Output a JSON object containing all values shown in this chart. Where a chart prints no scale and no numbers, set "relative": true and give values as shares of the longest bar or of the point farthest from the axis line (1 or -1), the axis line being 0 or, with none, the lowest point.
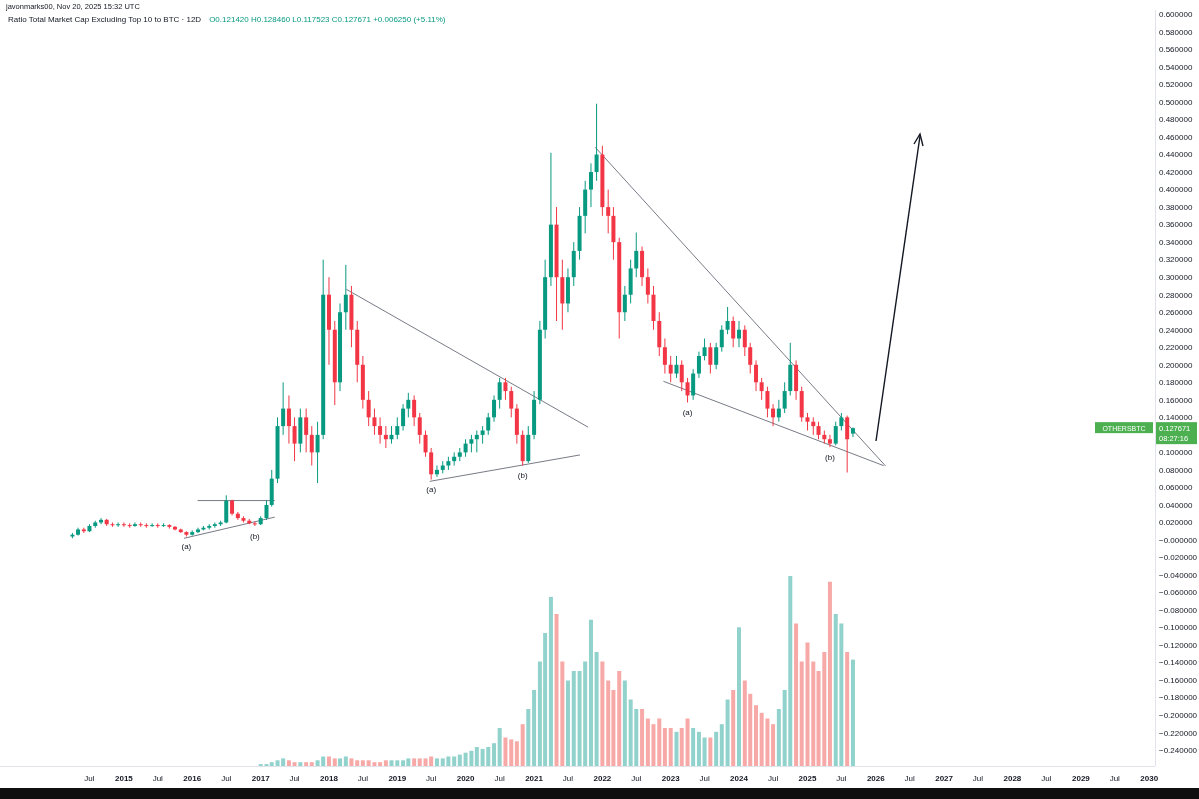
{
  "chart_data": [
    {
      "type": "candlestick",
      "title": "Ratio Total Market Cap Excluding Top 10 to BTC · 12D",
      "subtitle": "javonmarks00, Nov 20, 2025 15:32 UTC",
      "annotations": [
        "O0.121420 H0.128460 L0.117523 C0.127671 +0.006250 (+5.11%)",
        "OTHERSBTC",
        "0.127671",
        "08:27:16",
        {
          "text": "(a)",
          "x": "2015-12",
          "y": 0.004
        },
        {
          "text": "(b)",
          "x": "2016-12",
          "y": 0.016
        },
        {
          "text": "(a)",
          "x": "2019-07",
          "y": 0.069
        },
        {
          "text": "(b)",
          "x": "2020-11",
          "y": 0.085
        },
        {
          "text": "(a)",
          "x": "2023-04",
          "y": 0.157
        },
        {
          "text": "(b)",
          "x": "2025-05",
          "y": 0.106
        }
      ],
      "xlim": [
        "2013-03-10",
        "2030-02-01"
      ],
      "ylim": [
        -0.258,
        0.605
      ],
      "xticks": [
        {
          "value": "2014-07",
          "label": "Jul"
        },
        {
          "value": "2015",
          "label": "2015"
        },
        {
          "value": "2015-07",
          "label": "Jul"
        },
        {
          "value": "2016",
          "label": "2016"
        },
        {
          "value": "2016-07",
          "label": "Jul"
        },
        {
          "value": "2017",
          "label": "2017"
        },
        {
          "value": "2017-07",
          "label": "Jul"
        },
        {
          "value": "2018",
          "label": "2018"
        },
        {
          "value": "2018-07",
          "label": "Jul"
        },
        {
          "value": "2019",
          "label": "2019"
        },
        {
          "value": "2019-07",
          "label": "Jul"
        },
        {
          "value": "2020",
          "label": "2020"
        },
        {
          "value": "2020-07",
          "label": "Jul"
        },
        {
          "value": "2021",
          "label": "2021"
        },
        {
          "value": "2021-07",
          "label": "Jul"
        },
        {
          "value": "2022",
          "label": "2022"
        },
        {
          "value": "2022-07",
          "label": "Jul"
        },
        {
          "value": "2023",
          "label": "2023"
        },
        {
          "value": "2023-07",
          "label": "Jul"
        },
        {
          "value": "2024",
          "label": "2024"
        },
        {
          "value": "2024-07",
          "label": "Jul"
        },
        {
          "value": "2025",
          "label": "2025"
        },
        {
          "value": "2025-07",
          "label": "Jul"
        },
        {
          "value": "2026",
          "label": "2026"
        },
        {
          "value": "2026-07",
          "label": "Jul"
        },
        {
          "value": "2027",
          "label": "2027"
        },
        {
          "value": "2027-07",
          "label": "Jul"
        },
        {
          "value": "2028",
          "label": "2028"
        },
        {
          "value": "2028-07",
          "label": "Jul"
        },
        {
          "value": "2029",
          "label": "2029"
        },
        {
          "value": "2029-07",
          "label": "Jul"
        },
        {
          "value": "2030",
          "label": "2030"
        }
      ],
      "yticks": [
        {
          "value": 0.6,
          "label": "0.600000"
        },
        {
          "value": 0.58,
          "label": "0.580000"
        },
        {
          "value": 0.56,
          "label": "0.560000"
        },
        {
          "value": 0.54,
          "label": "0.540000"
        },
        {
          "value": 0.52,
          "label": "0.520000"
        },
        {
          "value": 0.5,
          "label": "0.500000"
        },
        {
          "value": 0.48,
          "label": "0.480000"
        },
        {
          "value": 0.46,
          "label": "0.460000"
        },
        {
          "value": 0.44,
          "label": "0.440000"
        },
        {
          "value": 0.42,
          "label": "0.420000"
        },
        {
          "value": 0.4,
          "label": "0.400000"
        },
        {
          "value": 0.38,
          "label": "0.380000"
        },
        {
          "value": 0.36,
          "label": "0.360000"
        },
        {
          "value": 0.34,
          "label": "0.340000"
        },
        {
          "value": 0.32,
          "label": "0.320000"
        },
        {
          "value": 0.3,
          "label": "0.300000"
        },
        {
          "value": 0.28,
          "label": "0.280000"
        },
        {
          "value": 0.26,
          "label": "0.260000"
        },
        {
          "value": 0.24,
          "label": "0.240000"
        },
        {
          "value": 0.22,
          "label": "0.220000"
        },
        {
          "value": 0.2,
          "label": "0.200000"
        },
        {
          "value": 0.18,
          "label": "0.180000"
        },
        {
          "value": 0.16,
          "label": "0.160000"
        },
        {
          "value": 0.14,
          "label": "0.140000"
        },
        {
          "value": 0.1,
          "label": "0.100000"
        },
        {
          "value": 0.08,
          "label": "0.080000"
        },
        {
          "value": 0.06,
          "label": "0.060000"
        },
        {
          "value": 0.04,
          "label": "0.040000"
        },
        {
          "value": 0.02,
          "label": "0.020000"
        },
        {
          "value": 0,
          "label": "−0.000000"
        },
        {
          "value": -0.02,
          "label": "−0.020000"
        },
        {
          "value": -0.04,
          "label": "−0.040000"
        },
        {
          "value": -0.06,
          "label": "−0.060000"
        },
        {
          "value": -0.08,
          "label": "−0.080000"
        },
        {
          "value": -0.1,
          "label": "−0.100000"
        },
        {
          "value": -0.12,
          "label": "−0.120000"
        },
        {
          "value": -0.14,
          "label": "−0.140000"
        },
        {
          "value": -0.16,
          "label": "−0.160000"
        },
        {
          "value": -0.18,
          "label": "−0.180000"
        },
        {
          "value": -0.2,
          "label": "−0.200000"
        },
        {
          "value": -0.22,
          "label": "−0.220000"
        },
        {
          "value": -0.24,
          "label": "−0.240000"
        }
      ],
      "colors": [
        "#089981",
        "#089981",
        "#f23645",
        "#089981",
        "#089981",
        "#089981",
        "#f23645",
        "#f23645",
        "#089981",
        "#f23645",
        "#f23645",
        "#089981",
        "#f23645",
        "#f23645",
        "#089981",
        "#f23645",
        "#089981",
        "#f23645",
        "#f23645",
        "#f23645",
        "#f23645",
        "#089981",
        "#089981",
        "#089981",
        "#089981",
        "#089981",
        "#089981",
        "#089981",
        "#f23645",
        "#f23645",
        "#f23645",
        "#f23645",
        "#f23645",
        "#089981",
        "#089981",
        "#089981",
        "#089981",
        "#089981",
        "#f23645",
        "#f23645",
        "#089981",
        "#f23645",
        "#f23645",
        "#089981",
        "#089981",
        "#f23645",
        "#f23645",
        "#089981",
        "#089981",
        "#f23645",
        "#f23645",
        "#f23645",
        "#f23645",
        "#f23645",
        "#f23645",
        "#f23645",
        "#089981",
        "#089981",
        "#089981",
        "#089981",
        "#f23645",
        "#f23645",
        "#f23645",
        "#f23645",
        "#089981",
        "#089981",
        "#089981",
        "#089981",
        "#089981",
        "#089981",
        "#089981",
        "#089981",
        "#089981",
        "#089981",
        "#089981",
        "#089981",
        "#f23645",
        "#f23645",
        "#f23645",
        "#f23645",
        "#089981",
        "#089981",
        "#089981",
        "#089981",
        "#089981",
        "#f23645",
        "#f23645",
        "#089981",
        "#089981",
        "#089981",
        "#089981",
        "#089981",
        "#089981",
        "#f23645",
        "#f23645",
        "#f23645",
        "#f23645",
        "#089981",
        "#089981",
        "#089981",
        "#f23645",
        "#f23645",
        "#f23645",
        "#f23645",
        "#f23645",
        "#f23645",
        "#089981",
        "#f23645",
        "#f23645",
        "#089981",
        "#089981",
        "#089981",
        "#f23645",
        "#089981",
        "#089981",
        "#089981",
        "#f23645",
        "#089981",
        "#f23645",
        "#f23645",
        "#f23645",
        "#f23645",
        "#f23645",
        "#f23645",
        "#089981",
        "#089981",
        "#089981",
        "#f23645",
        "#f23645",
        "#f23645",
        "#f23645",
        "#f23645",
        "#f23645",
        "#f23645",
        "#089981",
        "#089981",
        "#f23645",
        "#089981"
      ],
      "x": [
        "2014-04",
        "2014-05",
        "2014-06",
        "2014-07",
        "2014-08",
        "2014-09",
        "2014-10",
        "2014-11",
        "2014-12",
        "2015-01",
        "2015-02",
        "2015-03",
        "2015-04",
        "2015-05",
        "2015-06",
        "2015-07",
        "2015-08",
        "2015-09",
        "2015-10",
        "2015-11",
        "2015-12",
        "2016-01",
        "2016-02",
        "2016-03",
        "2016-04",
        "2016-05",
        "2016-06",
        "2016-07",
        "2016-08",
        "2016-09",
        "2016-10",
        "2016-11",
        "2016-12",
        "2017-01",
        "2017-02",
        "2017-03",
        "2017-04",
        "2017-05",
        "2017-06",
        "2017-07",
        "2017-08",
        "2017-09",
        "2017-10",
        "2017-11",
        "2017-12",
        "2018-01",
        "2018-02",
        "2018-03",
        "2018-04",
        "2018-05",
        "2018-06",
        "2018-07",
        "2018-08",
        "2018-09",
        "2018-10",
        "2018-11",
        "2018-12",
        "2019-01",
        "2019-02",
        "2019-03",
        "2019-04",
        "2019-05",
        "2019-06",
        "2019-07",
        "2019-08",
        "2019-09",
        "2019-10",
        "2019-11",
        "2019-12",
        "2020-01",
        "2020-02",
        "2020-03",
        "2020-04",
        "2020-05",
        "2020-06",
        "2020-07",
        "2020-08",
        "2020-09",
        "2020-10",
        "2020-11",
        "2020-12",
        "2021-01",
        "2021-02",
        "2021-03",
        "2021-04",
        "2021-05",
        "2021-06",
        "2021-07",
        "2021-08",
        "2021-09",
        "2021-10",
        "2021-11",
        "2021-12",
        "2022-01",
        "2022-02",
        "2022-03",
        "2022-04",
        "2022-05",
        "2022-06",
        "2022-07",
        "2022-08",
        "2022-09",
        "2022-10",
        "2022-11",
        "2022-12",
        "2023-01",
        "2023-02",
        "2023-03",
        "2023-04",
        "2023-05",
        "2023-06",
        "2023-07",
        "2023-08",
        "2023-09",
        "2023-10",
        "2023-11",
        "2023-12",
        "2024-01",
        "2024-02",
        "2024-03",
        "2024-04",
        "2024-05",
        "2024-06",
        "2024-07",
        "2024-08",
        "2024-09",
        "2024-10",
        "2024-11",
        "2024-12",
        "2025-01",
        "2025-02",
        "2025-03",
        "2025-04",
        "2025-05",
        "2025-06",
        "2025-07",
        "2025-08",
        "2025-09"
      ],
      "ohlc": [
        [
          0.004,
          0.008,
          0.002,
          0.006
        ],
        [
          0.006,
          0.014,
          0.005,
          0.012
        ],
        [
          0.012,
          0.014,
          0.008,
          0.01
        ],
        [
          0.01,
          0.018,
          0.009,
          0.016
        ],
        [
          0.016,
          0.022,
          0.014,
          0.02
        ],
        [
          0.02,
          0.025,
          0.018,
          0.023
        ],
        [
          0.023,
          0.024,
          0.016,
          0.018
        ],
        [
          0.018,
          0.02,
          0.015,
          0.017
        ],
        [
          0.017,
          0.02,
          0.015,
          0.018
        ],
        [
          0.018,
          0.02,
          0.015,
          0.017
        ],
        [
          0.017,
          0.019,
          0.014,
          0.016
        ],
        [
          0.016,
          0.02,
          0.015,
          0.018
        ],
        [
          0.018,
          0.02,
          0.015,
          0.017
        ],
        [
          0.017,
          0.019,
          0.014,
          0.016
        ],
        [
          0.016,
          0.019,
          0.015,
          0.017
        ],
        [
          0.017,
          0.019,
          0.014,
          0.016
        ],
        [
          0.016,
          0.019,
          0.015,
          0.017
        ],
        [
          0.017,
          0.018,
          0.013,
          0.015
        ],
        [
          0.015,
          0.016,
          0.011,
          0.012
        ],
        [
          0.012,
          0.013,
          0.008,
          0.009
        ],
        [
          0.009,
          0.01,
          0.004,
          0.006
        ],
        [
          0.006,
          0.011,
          0.005,
          0.009
        ],
        [
          0.009,
          0.014,
          0.008,
          0.012
        ],
        [
          0.012,
          0.016,
          0.011,
          0.014
        ],
        [
          0.014,
          0.018,
          0.012,
          0.016
        ],
        [
          0.016,
          0.02,
          0.014,
          0.018
        ],
        [
          0.018,
          0.022,
          0.016,
          0.02
        ],
        [
          0.02,
          0.051,
          0.019,
          0.045
        ],
        [
          0.045,
          0.046,
          0.028,
          0.03
        ],
        [
          0.03,
          0.032,
          0.023,
          0.025
        ],
        [
          0.025,
          0.027,
          0.02,
          0.022
        ],
        [
          0.022,
          0.024,
          0.018,
          0.019
        ],
        [
          0.019,
          0.021,
          0.016,
          0.018
        ],
        [
          0.018,
          0.027,
          0.017,
          0.025
        ],
        [
          0.025,
          0.045,
          0.023,
          0.04
        ],
        [
          0.04,
          0.08,
          0.038,
          0.07
        ],
        [
          0.07,
          0.14,
          0.065,
          0.13
        ],
        [
          0.13,
          0.18,
          0.12,
          0.15
        ],
        [
          0.15,
          0.165,
          0.11,
          0.13
        ],
        [
          0.13,
          0.14,
          0.09,
          0.11
        ],
        [
          0.11,
          0.15,
          0.1,
          0.14
        ],
        [
          0.14,
          0.15,
          0.1,
          0.12
        ],
        [
          0.12,
          0.13,
          0.085,
          0.1
        ],
        [
          0.1,
          0.135,
          0.065,
          0.12
        ],
        [
          0.12,
          0.32,
          0.115,
          0.28
        ],
        [
          0.28,
          0.3,
          0.2,
          0.24
        ],
        [
          0.24,
          0.25,
          0.154,
          0.18
        ],
        [
          0.18,
          0.27,
          0.17,
          0.26
        ],
        [
          0.26,
          0.314,
          0.24,
          0.28
        ],
        [
          0.28,
          0.29,
          0.22,
          0.24
        ],
        [
          0.24,
          0.25,
          0.18,
          0.2
        ],
        [
          0.2,
          0.21,
          0.15,
          0.16
        ],
        [
          0.16,
          0.17,
          0.13,
          0.14
        ],
        [
          0.14,
          0.15,
          0.12,
          0.13
        ],
        [
          0.13,
          0.14,
          0.11,
          0.12
        ],
        [
          0.12,
          0.13,
          0.105,
          0.115
        ],
        [
          0.115,
          0.13,
          0.11,
          0.12
        ],
        [
          0.12,
          0.14,
          0.115,
          0.13
        ],
        [
          0.13,
          0.155,
          0.125,
          0.15
        ],
        [
          0.15,
          0.168,
          0.14,
          0.16
        ],
        [
          0.16,
          0.165,
          0.13,
          0.14
        ],
        [
          0.14,
          0.145,
          0.11,
          0.12
        ],
        [
          0.12,
          0.125,
          0.095,
          0.1
        ],
        [
          0.1,
          0.105,
          0.069,
          0.075
        ],
        [
          0.075,
          0.085,
          0.072,
          0.08
        ],
        [
          0.08,
          0.09,
          0.076,
          0.085
        ],
        [
          0.085,
          0.095,
          0.08,
          0.09
        ],
        [
          0.09,
          0.1,
          0.085,
          0.095
        ],
        [
          0.095,
          0.105,
          0.09,
          0.1
        ],
        [
          0.1,
          0.115,
          0.095,
          0.11
        ],
        [
          0.11,
          0.12,
          0.1,
          0.115
        ],
        [
          0.115,
          0.125,
          0.1,
          0.12
        ],
        [
          0.12,
          0.13,
          0.11,
          0.125
        ],
        [
          0.125,
          0.145,
          0.12,
          0.14
        ],
        [
          0.14,
          0.165,
          0.135,
          0.16
        ],
        [
          0.16,
          0.185,
          0.15,
          0.18
        ],
        [
          0.18,
          0.185,
          0.16,
          0.17
        ],
        [
          0.17,
          0.175,
          0.14,
          0.15
        ],
        [
          0.15,
          0.155,
          0.11,
          0.12
        ],
        [
          0.12,
          0.125,
          0.085,
          0.09
        ],
        [
          0.09,
          0.13,
          0.088,
          0.12
        ],
        [
          0.12,
          0.17,
          0.115,
          0.16
        ],
        [
          0.16,
          0.25,
          0.155,
          0.24
        ],
        [
          0.24,
          0.32,
          0.23,
          0.3
        ],
        [
          0.3,
          0.442,
          0.29,
          0.36
        ],
        [
          0.36,
          0.38,
          0.25,
          0.3
        ],
        [
          0.3,
          0.32,
          0.24,
          0.27
        ],
        [
          0.27,
          0.31,
          0.26,
          0.3
        ],
        [
          0.3,
          0.34,
          0.29,
          0.33
        ],
        [
          0.33,
          0.38,
          0.32,
          0.37
        ],
        [
          0.37,
          0.41,
          0.35,
          0.4
        ],
        [
          0.4,
          0.43,
          0.38,
          0.42
        ],
        [
          0.42,
          0.498,
          0.41,
          0.44
        ],
        [
          0.44,
          0.45,
          0.37,
          0.38
        ],
        [
          0.38,
          0.4,
          0.35,
          0.37
        ],
        [
          0.37,
          0.38,
          0.32,
          0.34
        ],
        [
          0.34,
          0.345,
          0.23,
          0.26
        ],
        [
          0.26,
          0.29,
          0.25,
          0.28
        ],
        [
          0.28,
          0.32,
          0.27,
          0.31
        ],
        [
          0.31,
          0.351,
          0.3,
          0.33
        ],
        [
          0.33,
          0.335,
          0.29,
          0.3
        ],
        [
          0.3,
          0.31,
          0.27,
          0.28
        ],
        [
          0.28,
          0.29,
          0.24,
          0.25
        ],
        [
          0.25,
          0.26,
          0.21,
          0.22
        ],
        [
          0.22,
          0.23,
          0.19,
          0.2
        ],
        [
          0.2,
          0.21,
          0.18,
          0.19
        ],
        [
          0.19,
          0.21,
          0.185,
          0.2
        ],
        [
          0.2,
          0.205,
          0.17,
          0.18
        ],
        [
          0.18,
          0.185,
          0.157,
          0.165
        ],
        [
          0.165,
          0.195,
          0.16,
          0.19
        ],
        [
          0.19,
          0.215,
          0.185,
          0.21
        ],
        [
          0.21,
          0.23,
          0.205,
          0.22
        ],
        [
          0.22,
          0.225,
          0.19,
          0.2
        ],
        [
          0.2,
          0.225,
          0.195,
          0.22
        ],
        [
          0.22,
          0.245,
          0.215,
          0.24
        ],
        [
          0.24,
          0.266,
          0.235,
          0.25
        ],
        [
          0.25,
          0.255,
          0.22,
          0.23
        ],
        [
          0.23,
          0.25,
          0.22,
          0.24
        ],
        [
          0.24,
          0.245,
          0.21,
          0.22
        ],
        [
          0.22,
          0.225,
          0.19,
          0.2
        ],
        [
          0.2,
          0.205,
          0.17,
          0.18
        ],
        [
          0.18,
          0.185,
          0.16,
          0.17
        ],
        [
          0.17,
          0.175,
          0.14,
          0.15
        ],
        [
          0.15,
          0.155,
          0.13,
          0.14
        ],
        [
          0.14,
          0.16,
          0.135,
          0.15
        ],
        [
          0.15,
          0.18,
          0.145,
          0.17
        ],
        [
          0.17,
          0.225,
          0.165,
          0.2
        ],
        [
          0.2,
          0.205,
          0.16,
          0.17
        ],
        [
          0.17,
          0.175,
          0.135,
          0.14
        ],
        [
          0.14,
          0.145,
          0.125,
          0.135
        ],
        [
          0.135,
          0.14,
          0.12,
          0.13
        ],
        [
          0.13,
          0.135,
          0.115,
          0.12
        ],
        [
          0.12,
          0.125,
          0.11,
          0.115
        ],
        [
          0.115,
          0.12,
          0.106,
          0.11
        ],
        [
          0.11,
          0.135,
          0.108,
          0.13
        ],
        [
          0.13,
          0.145,
          0.125,
          0.14
        ],
        [
          0.14,
          0.142,
          0.077,
          0.115
        ],
        [
          0.12142,
          0.12846,
          0.117523,
          0.127671
        ]
      ],
      "series": [
        {
          "type": "line",
          "color": "#787b86",
          "x": [
            "2015-11-20",
            "2017-03-15"
          ],
          "values": [
            0.002,
            0.026
          ]
        },
        {
          "type": "line",
          "color": "#787b86",
          "x": [
            "2016-02-01",
            "2017-03-15"
          ],
          "values": [
            0.045,
            0.045
          ]
        },
        {
          "type": "line",
          "color": "#787b86",
          "x": [
            "2018-04-05",
            "2021-10-15"
          ],
          "values": [
            0.286,
            0.129
          ]
        },
        {
          "type": "line",
          "color": "#787b86",
          "x": [
            "2019-06-25",
            "2021-09-01"
          ],
          "values": [
            0.067,
            0.097
          ]
        },
        {
          "type": "line",
          "color": "#787b86",
          "x": [
            "2021-11-25",
            "2026-02-20"
          ],
          "values": [
            0.448,
            0.085
          ]
        },
        {
          "type": "line",
          "color": "#787b86",
          "x": [
            "2022-11-25",
            "2026-02-10"
          ],
          "values": [
            0.181,
            0.085
          ]
        }
      ]
    },
    {
      "type": "bar",
      "relative": true,
      "xlim": [
        "2013-03-10",
        "2030-02-01"
      ],
      "x": [
        "2017-01",
        "2017-02",
        "2017-03",
        "2017-04",
        "2017-05",
        "2017-06",
        "2017-07",
        "2017-08",
        "2017-09",
        "2017-10",
        "2017-11",
        "2017-12",
        "2018-01",
        "2018-02",
        "2018-03",
        "2018-04",
        "2018-05",
        "2018-06",
        "2018-07",
        "2018-08",
        "2018-09",
        "2018-10",
        "2018-11",
        "2018-12",
        "2019-01",
        "2019-02",
        "2019-03",
        "2019-04",
        "2019-05",
        "2019-06",
        "2019-07",
        "2019-08",
        "2019-09",
        "2019-10",
        "2019-11",
        "2019-12",
        "2020-01",
        "2020-02",
        "2020-03",
        "2020-04",
        "2020-05",
        "2020-06",
        "2020-07",
        "2020-08",
        "2020-09",
        "2020-10",
        "2020-11",
        "2020-12",
        "2021-01",
        "2021-02",
        "2021-03",
        "2021-04",
        "2021-05",
        "2021-06",
        "2021-07",
        "2021-08",
        "2021-09",
        "2021-10",
        "2021-11",
        "2021-12",
        "2022-01",
        "2022-02",
        "2022-03",
        "2022-04",
        "2022-05",
        "2022-06",
        "2022-07",
        "2022-08",
        "2022-09",
        "2022-10",
        "2022-11",
        "2022-12",
        "2023-01",
        "2023-02",
        "2023-03",
        "2023-04",
        "2023-05",
        "2023-06",
        "2023-07",
        "2023-08",
        "2023-09",
        "2023-10",
        "2023-11",
        "2023-12",
        "2024-01",
        "2024-02",
        "2024-03",
        "2024-04",
        "2024-05",
        "2024-06",
        "2024-07",
        "2024-08",
        "2024-09",
        "2024-10",
        "2024-11",
        "2024-12",
        "2025-01",
        "2025-02",
        "2025-03",
        "2025-04",
        "2025-05",
        "2025-06",
        "2025-07",
        "2025-08",
        "2025-09"
      ],
      "values": [
        0.01,
        0.01,
        0.02,
        0.03,
        0.04,
        0.03,
        0.02,
        0.02,
        0.02,
        0.02,
        0.03,
        0.05,
        0.05,
        0.04,
        0.04,
        0.05,
        0.04,
        0.03,
        0.03,
        0.03,
        0.02,
        0.02,
        0.03,
        0.03,
        0.03,
        0.03,
        0.04,
        0.04,
        0.04,
        0.04,
        0.05,
        0.04,
        0.04,
        0.05,
        0.05,
        0.06,
        0.07,
        0.08,
        0.1,
        0.09,
        0.1,
        0.12,
        0.2,
        0.15,
        0.14,
        0.13,
        0.22,
        0.3,
        0.4,
        0.55,
        0.7,
        0.89,
        0.8,
        0.55,
        0.45,
        0.5,
        0.5,
        0.55,
        0.77,
        0.6,
        0.55,
        0.45,
        0.4,
        0.5,
        0.45,
        0.35,
        0.3,
        0.3,
        0.25,
        0.22,
        0.25,
        0.2,
        0.2,
        0.18,
        0.2,
        0.25,
        0.2,
        0.18,
        0.15,
        0.15,
        0.18,
        0.22,
        0.35,
        0.4,
        0.73,
        0.45,
        0.38,
        0.32,
        0.28,
        0.25,
        0.22,
        0.3,
        0.4,
        1.0,
        0.75,
        0.55,
        0.65,
        0.55,
        0.5,
        0.6,
        0.97,
        0.8,
        0.75,
        0.6,
        0.56
      ],
      "colors": [
        "#92d2cc",
        "#92d2cc",
        "#92d2cc",
        "#92d2cc",
        "#92d2cc",
        "#f7a9a7",
        "#f7a9a7",
        "#92d2cc",
        "#f7a9a7",
        "#f7a9a7",
        "#92d2cc",
        "#92d2cc",
        "#f7a9a7",
        "#f7a9a7",
        "#92d2cc",
        "#92d2cc",
        "#f7a9a7",
        "#f7a9a7",
        "#f7a9a7",
        "#f7a9a7",
        "#f7a9a7",
        "#f7a9a7",
        "#f7a9a7",
        "#92d2cc",
        "#92d2cc",
        "#92d2cc",
        "#92d2cc",
        "#f7a9a7",
        "#f7a9a7",
        "#f7a9a7",
        "#f7a9a7",
        "#92d2cc",
        "#92d2cc",
        "#92d2cc",
        "#92d2cc",
        "#92d2cc",
        "#92d2cc",
        "#92d2cc",
        "#92d2cc",
        "#92d2cc",
        "#92d2cc",
        "#92d2cc",
        "#92d2cc",
        "#f7a9a7",
        "#f7a9a7",
        "#f7a9a7",
        "#f7a9a7",
        "#92d2cc",
        "#92d2cc",
        "#92d2cc",
        "#92d2cc",
        "#92d2cc",
        "#f7a9a7",
        "#f7a9a7",
        "#92d2cc",
        "#92d2cc",
        "#92d2cc",
        "#92d2cc",
        "#92d2cc",
        "#92d2cc",
        "#f7a9a7",
        "#f7a9a7",
        "#f7a9a7",
        "#f7a9a7",
        "#92d2cc",
        "#92d2cc",
        "#92d2cc",
        "#f7a9a7",
        "#f7a9a7",
        "#f7a9a7",
        "#f7a9a7",
        "#f7a9a7",
        "#f7a9a7",
        "#92d2cc",
        "#f7a9a7",
        "#f7a9a7",
        "#92d2cc",
        "#92d2cc",
        "#92d2cc",
        "#f7a9a7",
        "#92d2cc",
        "#92d2cc",
        "#92d2cc",
        "#f7a9a7",
        "#92d2cc",
        "#f7a9a7",
        "#f7a9a7",
        "#f7a9a7",
        "#f7a9a7",
        "#f7a9a7",
        "#f7a9a7",
        "#92d2cc",
        "#92d2cc",
        "#92d2cc",
        "#f7a9a7",
        "#f7a9a7",
        "#f7a9a7",
        "#f7a9a7",
        "#f7a9a7",
        "#f7a9a7",
        "#f7a9a7",
        "#92d2cc",
        "#92d2cc",
        "#f7a9a7",
        "#92d2cc"
      ]
    }
  ]
}
